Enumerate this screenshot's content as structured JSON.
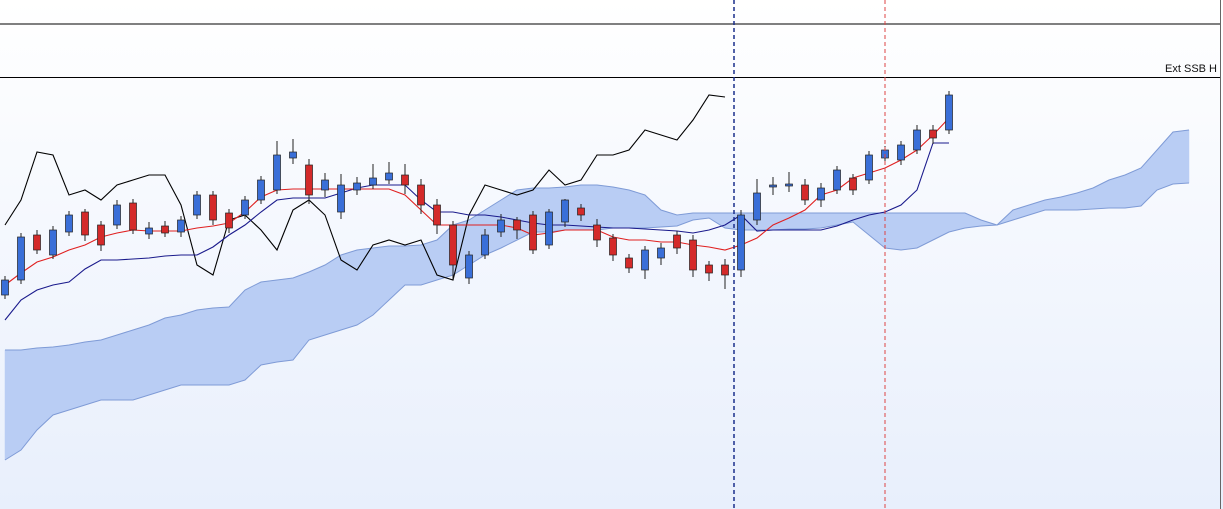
{
  "chart_data": {
    "type": "ichimoku",
    "annotation": "Ext SSB H",
    "ylim": [
      0,
      431
    ],
    "candles": {
      "up_color": "#3a6fd8",
      "down_color": "#d42a2a",
      "open": [
        214,
        229,
        274,
        254,
        277,
        297,
        284,
        284,
        306,
        275,
        283,
        277,
        294,
        314,
        296,
        294,
        309,
        319,
        351,
        344,
        319,
        297,
        319,
        324,
        329,
        334,
        324,
        304,
        284,
        231,
        254,
        277,
        289,
        294,
        264,
        287,
        301,
        284,
        271,
        251,
        239,
        251,
        274,
        269,
        244,
        244,
        239,
        289,
        322,
        323,
        324,
        309,
        319,
        331,
        329,
        351,
        349,
        359,
        379,
        379,
        null,
        null,
        null,
        null,
        null,
        null,
        null,
        null,
        null,
        null,
        null,
        null,
        null,
        null,
        null
      ],
      "high": [
        233,
        276,
        279,
        283,
        298,
        300,
        288,
        309,
        310,
        287,
        288,
        293,
        318,
        318,
        300,
        313,
        333,
        368,
        370,
        350,
        336,
        335,
        332,
        345,
        347,
        345,
        330,
        310,
        288,
        258,
        280,
        295,
        292,
        298,
        300,
        310,
        305,
        290,
        275,
        255,
        263,
        266,
        278,
        274,
        248,
        250,
        299,
        330,
        332,
        337,
        330,
        326,
        343,
        335,
        358,
        363,
        368,
        384,
        384,
        418,
        null,
        null,
        null,
        null,
        null,
        null,
        null,
        null,
        null,
        null,
        null,
        null,
        null,
        null,
        null
      ],
      "low": [
        210,
        225,
        255,
        250,
        273,
        268,
        258,
        280,
        275,
        270,
        272,
        272,
        290,
        284,
        276,
        290,
        305,
        315,
        345,
        305,
        312,
        290,
        314,
        320,
        325,
        315,
        295,
        275,
        230,
        225,
        250,
        272,
        270,
        255,
        260,
        282,
        288,
        262,
        248,
        236,
        230,
        244,
        255,
        232,
        228,
        220,
        232,
        284,
        314,
        317,
        304,
        302,
        315,
        314,
        325,
        346,
        344,
        355,
        365,
        375,
        null,
        null,
        null,
        null,
        null,
        null,
        null,
        null,
        null,
        null,
        null,
        null,
        null,
        null,
        null
      ],
      "close": [
        229,
        272,
        259,
        279,
        294,
        274,
        264,
        304,
        279,
        281,
        276,
        289,
        314,
        289,
        281,
        309,
        329,
        354,
        357,
        314,
        329,
        324,
        326,
        331,
        336,
        324,
        304,
        284,
        244,
        254,
        274,
        289,
        279,
        259,
        297,
        309,
        294,
        269,
        254,
        241,
        259,
        261,
        261,
        239,
        236,
        234,
        294,
        316,
        324,
        325,
        309,
        321,
        339,
        319,
        354,
        359,
        364,
        379,
        371,
        414,
        null,
        null,
        null,
        null,
        null,
        null,
        null,
        null,
        null,
        null,
        null,
        null,
        null,
        null,
        null
      ]
    },
    "lines": [
      {
        "color": "#000000",
        "values": [
          284,
          309,
          357,
          354,
          314,
          319,
          309,
          324,
          329,
          334,
          334,
          304,
          244,
          234,
          289,
          294,
          279,
          259,
          299,
          309,
          294,
          249,
          239,
          264,
          269,
          264,
          269,
          234,
          229,
          294,
          324,
          319,
          314,
          319,
          339,
          324,
          329,
          354,
          354,
          359,
          379,
          374,
          369,
          389,
          414,
          412,
          null,
          null,
          null,
          null,
          null,
          null,
          null,
          null,
          null,
          null,
          null,
          null,
          null,
          null,
          null,
          null,
          null,
          null,
          null,
          null,
          null,
          null,
          null,
          null,
          null,
          null,
          null,
          null,
          null
        ]
      },
      {
        "color": "#1a1a8c",
        "values": [
          189,
          209,
          219,
          224,
          227,
          240,
          249,
          249,
          250,
          251,
          253,
          254,
          254,
          262,
          274,
          284,
          297,
          309,
          311,
          311,
          311,
          316,
          321,
          324,
          324,
          324,
          309,
          297,
          297,
          294,
          294,
          292,
          289,
          286,
          284,
          284,
          283,
          282,
          281,
          281,
          280,
          279,
          278,
          276,
          279,
          284,
          294,
          278,
          279,
          279,
          279,
          279,
          283,
          289,
          294,
          297,
          304,
          319,
          366,
          366,
          null,
          null,
          null,
          null,
          null,
          null,
          null,
          null,
          null,
          null,
          null,
          null,
          null,
          null,
          null
        ]
      },
      {
        "color": "#e02020",
        "values": [
          224,
          236,
          247,
          252,
          259,
          264,
          272,
          276,
          279,
          278,
          278,
          278,
          281,
          283,
          286,
          297,
          312,
          319,
          320,
          320,
          320,
          320,
          320,
          320,
          320,
          314,
          299,
          284,
          284,
          284,
          284,
          284,
          281,
          274,
          276,
          279,
          279,
          279,
          272,
          269,
          269,
          267,
          267,
          264,
          262,
          259,
          264,
          271,
          284,
          291,
          299,
          314,
          319,
          331,
          336,
          341,
          349,
          359,
          374,
          391,
          null,
          null,
          null,
          null,
          null,
          null,
          null,
          null,
          null,
          null,
          null,
          null,
          null,
          null,
          null
        ]
      }
    ],
    "cloud": {
      "fill": "#b9cdf4",
      "edge": "#7f9bd6",
      "span_a": [
        159,
        159,
        161,
        162,
        164,
        167,
        169,
        174,
        179,
        184,
        191,
        194,
        199,
        201,
        202,
        219,
        227,
        229,
        231,
        237,
        244,
        254,
        259,
        261,
        263,
        263,
        264,
        269,
        284,
        289,
        299,
        309,
        319,
        321,
        321,
        322,
        324,
        324,
        322,
        319,
        314,
        299,
        294,
        296,
        296,
        296,
        296,
        296,
        296,
        296,
        296,
        296,
        296,
        296,
        296,
        296,
        296,
        296,
        296,
        296,
        296,
        289,
        284,
        299,
        304,
        309,
        312,
        316,
        321,
        329,
        334,
        341,
        359,
        377,
        379
      ],
      "span_b": [
        49,
        59,
        79,
        94,
        99,
        104,
        109,
        109,
        109,
        114,
        119,
        124,
        124,
        124,
        124,
        129,
        144,
        147,
        149,
        169,
        174,
        179,
        184,
        194,
        209,
        224,
        224,
        229,
        234,
        244,
        254,
        261,
        269,
        277,
        277,
        279,
        279,
        279,
        281,
        281,
        281,
        282,
        283,
        289,
        291,
        281,
        279,
        279,
        279,
        280,
        280,
        281,
        284,
        287,
        274,
        261,
        259,
        261,
        269,
        277,
        281,
        283,
        284,
        289,
        294,
        299,
        299,
        299,
        300,
        301,
        301,
        303,
        319,
        325,
        326
      ]
    }
  }
}
